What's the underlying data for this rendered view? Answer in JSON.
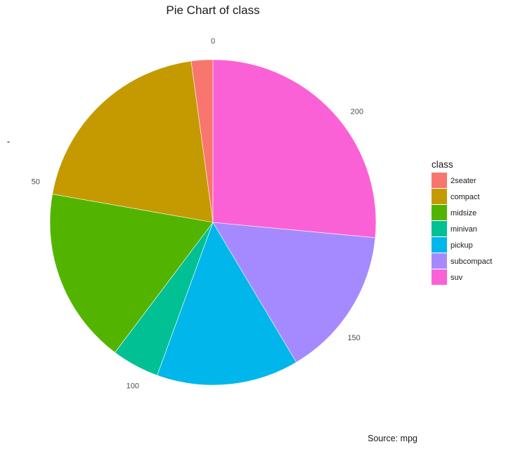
{
  "chart_data": {
    "type": "pie",
    "title": "Pie Chart of class",
    "ylabel": "-",
    "caption": "Source: mpg",
    "legend": {
      "title": "class",
      "position": "right"
    },
    "categories": [
      "2seater",
      "compact",
      "midsize",
      "minivan",
      "pickup",
      "subcompact",
      "suv"
    ],
    "values": [
      5,
      47,
      41,
      11,
      33,
      35,
      62
    ],
    "total": 234,
    "ticks": [
      "0",
      "50",
      "100",
      "150",
      "200"
    ],
    "tick_values": [
      0,
      50,
      100,
      150,
      200
    ],
    "colors": [
      "#F8766D",
      "#C49A00",
      "#53B400",
      "#00C094",
      "#00B6EB",
      "#A58AFF",
      "#FB61D7"
    ],
    "grid": false
  }
}
